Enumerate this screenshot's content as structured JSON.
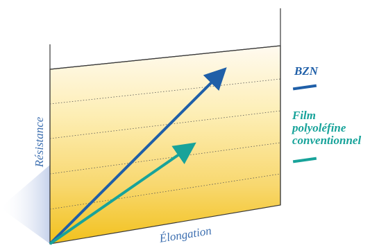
{
  "chart_data": {
    "type": "line",
    "title": "",
    "xlabel": "Élongation",
    "ylabel": "Résistance",
    "grid": true,
    "legend_position": "right",
    "series": [
      {
        "name": "BZN",
        "color": "#1f5fa8",
        "line": [
          [
            0,
            0
          ],
          [
            1.0,
            0.88
          ]
        ]
      },
      {
        "name_lines": [
          "Film",
          "polyoléfine",
          "conventionnel"
        ],
        "color": "#18a39a",
        "line": [
          [
            0,
            0
          ],
          [
            0.82,
            0.45
          ]
        ]
      }
    ]
  }
}
